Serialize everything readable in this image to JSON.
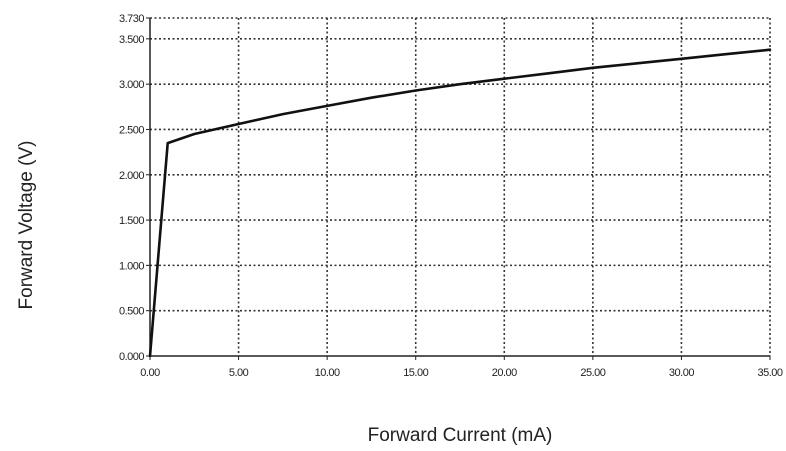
{
  "chart_data": {
    "type": "line",
    "title": "",
    "xlabel": "Forward Current (mA)",
    "ylabel": "Forward Voltage (V)",
    "xlim": [
      0,
      35
    ],
    "ylim": [
      0,
      3.73
    ],
    "grid": true,
    "x_ticks": [
      0,
      5,
      10,
      15,
      20,
      25,
      30,
      35
    ],
    "x_tick_labels": [
      "0.00",
      "5.00",
      "10.00",
      "15.00",
      "20.00",
      "25.00",
      "30.00",
      "35.00"
    ],
    "y_ticks": [
      0,
      0.5,
      1.0,
      1.5,
      2.0,
      2.5,
      3.0,
      3.5,
      3.73
    ],
    "y_tick_labels": [
      "0.000",
      "0.500",
      "1.000",
      "1.500",
      "2.000",
      "2.500",
      "3.000",
      "3.500",
      "3.730"
    ],
    "series": [
      {
        "color": "#111111",
        "x": [
          0,
          1,
          2.5,
          5,
          7.5,
          10,
          12.5,
          15,
          17.5,
          20,
          22.5,
          25,
          27.5,
          30,
          32.5,
          35
        ],
        "y": [
          0.0,
          2.35,
          2.45,
          2.56,
          2.67,
          2.76,
          2.85,
          2.93,
          3.0,
          3.06,
          3.12,
          3.18,
          3.23,
          3.28,
          3.33,
          3.38
        ]
      }
    ]
  }
}
